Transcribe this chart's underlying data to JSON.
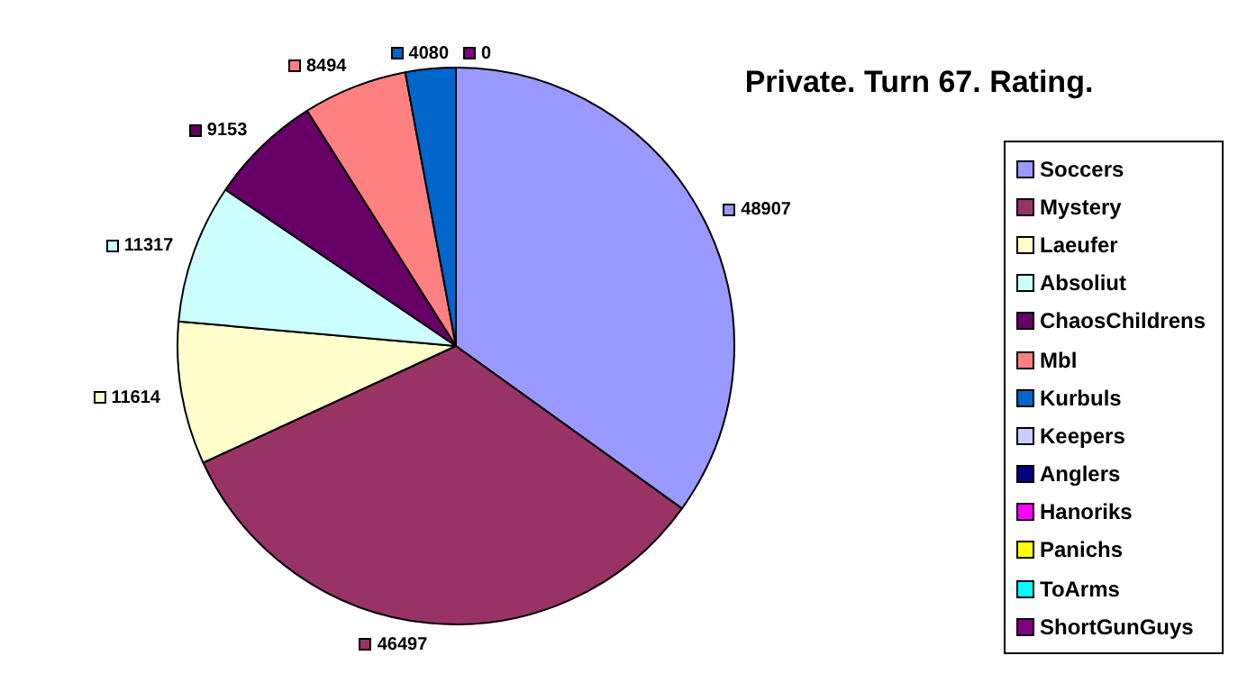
{
  "chart_data": {
    "type": "pie",
    "title": "Private. Turn 67. Rating.",
    "categories": [
      "Soccers",
      "Mystery",
      "Laeufer",
      "Absoliut",
      "ChaosChildrens",
      "Mbl",
      "Kurbuls",
      "Keepers",
      "Anglers",
      "Hanoriks",
      "Panichs",
      "ToArms",
      "ShortGunGuys"
    ],
    "values": [
      48907,
      46497,
      11614,
      11317,
      9153,
      8494,
      4080,
      0,
      0,
      0,
      0,
      0,
      0
    ],
    "value_labels": [
      "48907",
      "46497",
      "11614",
      "11317",
      "9153",
      "8494",
      "4080",
      null,
      null,
      null,
      null,
      null,
      "0"
    ],
    "colors": [
      "#9999ff",
      "#993366",
      "#ffffcc",
      "#ccffff",
      "#660066",
      "#ff8080",
      "#0066cc",
      "#ccccff",
      "#000080",
      "#ff00ff",
      "#ffff00",
      "#00ffff",
      "#800080"
    ],
    "legend": "right"
  }
}
